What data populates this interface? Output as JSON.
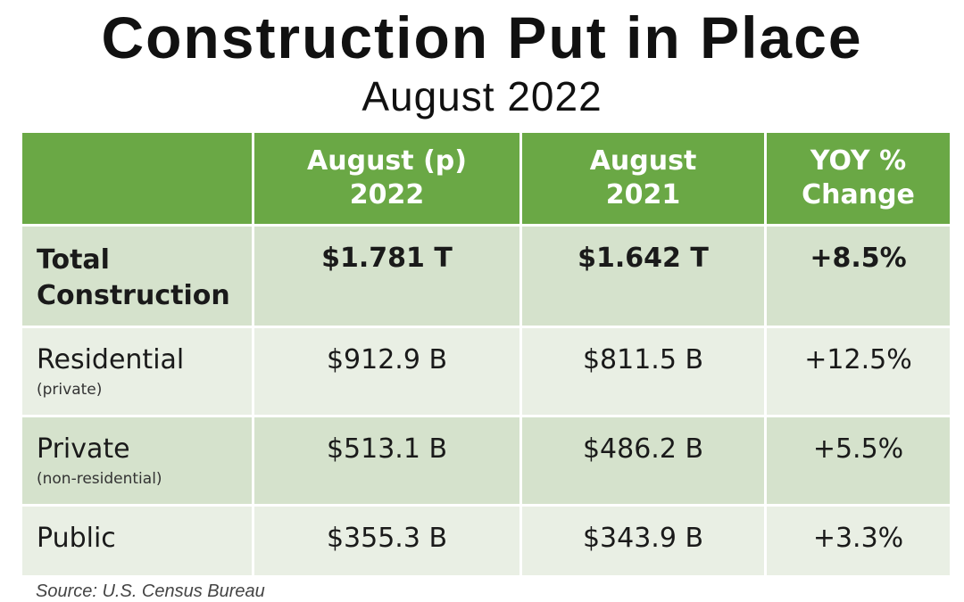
{
  "title": "Construction Put in Place",
  "subtitle": "August 2022",
  "chart_data": {
    "type": "table",
    "columns": [
      {
        "line1": "",
        "line2": ""
      },
      {
        "line1": "August (p)",
        "line2": "2022"
      },
      {
        "line1": "August",
        "line2": "2021"
      },
      {
        "line1": "YOY %",
        "line2": "Change"
      }
    ],
    "rows": [
      {
        "label": "Total Construction",
        "sublabel": "",
        "aug2022": "$1.781 T",
        "aug2021": "$1.642 T",
        "yoy": "+8.5%"
      },
      {
        "label": "Residential",
        "sublabel": "(private)",
        "aug2022": "$912.9 B",
        "aug2021": "$811.5 B",
        "yoy": "+12.5%"
      },
      {
        "label": "Private",
        "sublabel": "(non-residential)",
        "aug2022": "$513.1 B",
        "aug2021": "$486.2 B",
        "yoy": "+5.5%"
      },
      {
        "label": "Public",
        "sublabel": "",
        "aug2022": "$355.3 B",
        "aug2021": "$343.9 B",
        "yoy": "+3.3%"
      }
    ]
  },
  "source": "Source: U.S. Census Bureau",
  "colors": {
    "header_green": "#6aa845",
    "row_dark": "#d5e2cc",
    "row_light": "#e9efe4"
  }
}
